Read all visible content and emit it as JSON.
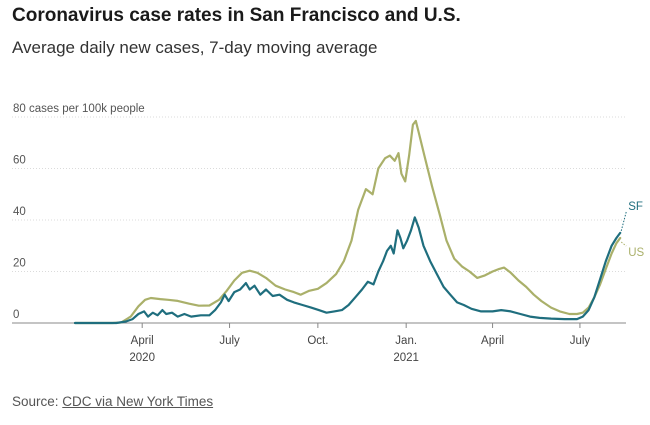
{
  "title": "Coronavirus case rates in San Francisco and U.S.",
  "subtitle": "Average daily new cases, 7-day moving average",
  "source_prefix": "Source: ",
  "source_link": "CDC via New York Times",
  "colors": {
    "sf": "#1f6e7e",
    "us": "#aab06a",
    "grid": "#cfcfcf",
    "axis": "#888888"
  },
  "chart_data": {
    "type": "line",
    "ylabel": "cases per 100k people",
    "ylim": [
      0,
      80
    ],
    "yticks": [
      {
        "value": 0,
        "label": "0"
      },
      {
        "value": 20,
        "label": "20"
      },
      {
        "value": 40,
        "label": "40"
      },
      {
        "value": 60,
        "label": "60"
      },
      {
        "value": 80,
        "label": "80"
      }
    ],
    "xlim": [
      "2020-01-22",
      "2021-08-18"
    ],
    "xticks": [
      {
        "date": "2020-04-01",
        "label": "April",
        "sublabel": "2020"
      },
      {
        "date": "2020-07-01",
        "label": "July",
        "sublabel": ""
      },
      {
        "date": "2020-10-01",
        "label": "Oct.",
        "sublabel": ""
      },
      {
        "date": "2021-01-01",
        "label": "Jan.",
        "sublabel": "2021"
      },
      {
        "date": "2021-04-01",
        "label": "April",
        "sublabel": ""
      },
      {
        "date": "2021-07-01",
        "label": "July",
        "sublabel": ""
      }
    ],
    "series": [
      {
        "name": "US",
        "points": [
          [
            "2020-01-22",
            0
          ],
          [
            "2020-03-01",
            0
          ],
          [
            "2020-03-10",
            0.2
          ],
          [
            "2020-03-20",
            2.5
          ],
          [
            "2020-03-28",
            6.5
          ],
          [
            "2020-04-04",
            9
          ],
          [
            "2020-04-10",
            9.7
          ],
          [
            "2020-04-20",
            9.3
          ],
          [
            "2020-04-28",
            9
          ],
          [
            "2020-05-08",
            8.6
          ],
          [
            "2020-05-20",
            7.5
          ],
          [
            "2020-05-30",
            6.7
          ],
          [
            "2020-06-10",
            6.8
          ],
          [
            "2020-06-20",
            9
          ],
          [
            "2020-06-28",
            12.5
          ],
          [
            "2020-07-06",
            16.5
          ],
          [
            "2020-07-14",
            19.5
          ],
          [
            "2020-07-22",
            20.3
          ],
          [
            "2020-07-30",
            19.5
          ],
          [
            "2020-08-08",
            17.5
          ],
          [
            "2020-08-18",
            14.5
          ],
          [
            "2020-08-28",
            13
          ],
          [
            "2020-09-06",
            12
          ],
          [
            "2020-09-13",
            11
          ],
          [
            "2020-09-22",
            12.5
          ],
          [
            "2020-10-01",
            13.3
          ],
          [
            "2020-10-10",
            15.5
          ],
          [
            "2020-10-20",
            19
          ],
          [
            "2020-10-28",
            24
          ],
          [
            "2020-11-05",
            32
          ],
          [
            "2020-11-12",
            44
          ],
          [
            "2020-11-20",
            52
          ],
          [
            "2020-11-27",
            50
          ],
          [
            "2020-12-03",
            60
          ],
          [
            "2020-12-10",
            64
          ],
          [
            "2020-12-15",
            65
          ],
          [
            "2020-12-20",
            63
          ],
          [
            "2020-12-24",
            66
          ],
          [
            "2020-12-27",
            58
          ],
          [
            "2020-12-31",
            55
          ],
          [
            "2021-01-04",
            65
          ],
          [
            "2021-01-08",
            77
          ],
          [
            "2021-01-11",
            78.5
          ],
          [
            "2021-01-14",
            74
          ],
          [
            "2021-01-20",
            65
          ],
          [
            "2021-01-28",
            53
          ],
          [
            "2021-02-05",
            42
          ],
          [
            "2021-02-12",
            32
          ],
          [
            "2021-02-20",
            25
          ],
          [
            "2021-02-28",
            22
          ],
          [
            "2021-03-08",
            20
          ],
          [
            "2021-03-16",
            17.5
          ],
          [
            "2021-03-24",
            18.5
          ],
          [
            "2021-04-01",
            20
          ],
          [
            "2021-04-08",
            21
          ],
          [
            "2021-04-13",
            21.5
          ],
          [
            "2021-04-20",
            19.5
          ],
          [
            "2021-04-28",
            16.5
          ],
          [
            "2021-05-06",
            14
          ],
          [
            "2021-05-14",
            11
          ],
          [
            "2021-05-22",
            8.5
          ],
          [
            "2021-06-01",
            6
          ],
          [
            "2021-06-10",
            4.5
          ],
          [
            "2021-06-20",
            3.5
          ],
          [
            "2021-06-28",
            3.5
          ],
          [
            "2021-07-04",
            4
          ],
          [
            "2021-07-10",
            6
          ],
          [
            "2021-07-16",
            10
          ],
          [
            "2021-07-22",
            15
          ],
          [
            "2021-07-28",
            21
          ],
          [
            "2021-08-03",
            27
          ],
          [
            "2021-08-08",
            31
          ],
          [
            "2021-08-12",
            33
          ]
        ]
      },
      {
        "name": "SF",
        "points": [
          [
            "2020-01-22",
            0
          ],
          [
            "2020-03-05",
            0
          ],
          [
            "2020-03-15",
            0.6
          ],
          [
            "2020-03-22",
            1.5
          ],
          [
            "2020-03-28",
            3.5
          ],
          [
            "2020-04-03",
            4.5
          ],
          [
            "2020-04-07",
            2.5
          ],
          [
            "2020-04-12",
            4
          ],
          [
            "2020-04-17",
            3
          ],
          [
            "2020-04-22",
            5
          ],
          [
            "2020-04-26",
            3.5
          ],
          [
            "2020-05-02",
            4
          ],
          [
            "2020-05-08",
            2.5
          ],
          [
            "2020-05-15",
            3.5
          ],
          [
            "2020-05-22",
            2.5
          ],
          [
            "2020-06-01",
            3
          ],
          [
            "2020-06-10",
            3
          ],
          [
            "2020-06-16",
            5
          ],
          [
            "2020-06-22",
            8
          ],
          [
            "2020-06-26",
            11
          ],
          [
            "2020-06-30",
            8.5
          ],
          [
            "2020-07-06",
            12
          ],
          [
            "2020-07-12",
            13
          ],
          [
            "2020-07-18",
            15.5
          ],
          [
            "2020-07-22",
            13
          ],
          [
            "2020-07-27",
            14.5
          ],
          [
            "2020-08-02",
            11
          ],
          [
            "2020-08-08",
            13
          ],
          [
            "2020-08-15",
            10.5
          ],
          [
            "2020-08-22",
            11
          ],
          [
            "2020-08-30",
            9
          ],
          [
            "2020-09-06",
            8
          ],
          [
            "2020-09-15",
            7
          ],
          [
            "2020-09-24",
            6
          ],
          [
            "2020-10-02",
            5
          ],
          [
            "2020-10-10",
            4
          ],
          [
            "2020-10-18",
            4.5
          ],
          [
            "2020-10-26",
            5
          ],
          [
            "2020-11-02",
            7
          ],
          [
            "2020-11-09",
            10
          ],
          [
            "2020-11-16",
            13
          ],
          [
            "2020-11-22",
            16
          ],
          [
            "2020-11-28",
            15
          ],
          [
            "2020-12-03",
            20
          ],
          [
            "2020-12-08",
            24
          ],
          [
            "2020-12-12",
            28
          ],
          [
            "2020-12-16",
            30
          ],
          [
            "2020-12-19",
            27
          ],
          [
            "2020-12-23",
            36
          ],
          [
            "2020-12-26",
            33
          ],
          [
            "2020-12-29",
            29
          ],
          [
            "2021-01-02",
            32
          ],
          [
            "2021-01-06",
            36
          ],
          [
            "2021-01-10",
            41
          ],
          [
            "2021-01-14",
            37
          ],
          [
            "2021-01-19",
            30
          ],
          [
            "2021-01-26",
            24
          ],
          [
            "2021-02-02",
            19
          ],
          [
            "2021-02-09",
            14
          ],
          [
            "2021-02-16",
            11
          ],
          [
            "2021-02-23",
            8
          ],
          [
            "2021-03-02",
            7
          ],
          [
            "2021-03-10",
            5.5
          ],
          [
            "2021-03-20",
            4.5
          ],
          [
            "2021-04-01",
            4.5
          ],
          [
            "2021-04-10",
            5
          ],
          [
            "2021-04-20",
            4.5
          ],
          [
            "2021-04-30",
            3.5
          ],
          [
            "2021-05-10",
            2.5
          ],
          [
            "2021-05-20",
            2
          ],
          [
            "2021-06-01",
            1.7
          ],
          [
            "2021-06-15",
            1.5
          ],
          [
            "2021-06-28",
            1.5
          ],
          [
            "2021-07-04",
            2.5
          ],
          [
            "2021-07-10",
            5
          ],
          [
            "2021-07-16",
            10
          ],
          [
            "2021-07-22",
            17
          ],
          [
            "2021-07-28",
            24
          ],
          [
            "2021-08-03",
            30
          ],
          [
            "2021-08-08",
            33
          ],
          [
            "2021-08-12",
            35
          ]
        ]
      }
    ]
  }
}
